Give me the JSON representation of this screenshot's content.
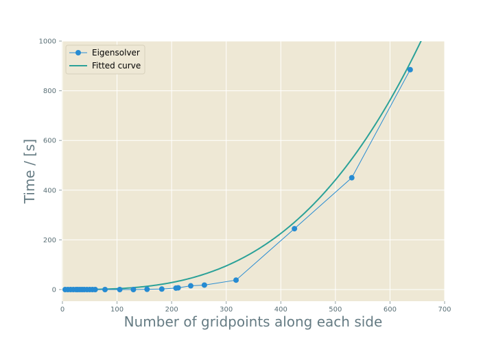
{
  "chart_data": {
    "type": "line",
    "title": "",
    "xlabel": "Number of gridpoints along each side",
    "ylabel": "Time / [s]",
    "xlim": [
      0,
      700
    ],
    "ylim": [
      -50,
      1000
    ],
    "xticks": [
      0,
      100,
      200,
      300,
      400,
      500,
      600,
      700
    ],
    "yticks": [
      0,
      200,
      400,
      600,
      800,
      1000
    ],
    "grid": true,
    "legend_position": "top-left",
    "series": [
      {
        "name": "Eigensolver",
        "style": "line-with-markers",
        "color": "#268bd2",
        "x": [
          5,
          10,
          15,
          20,
          25,
          28,
          32,
          36,
          40,
          45,
          50,
          55,
          60,
          78,
          105,
          130,
          155,
          182,
          208,
          212,
          235,
          260,
          318,
          425,
          530,
          637
        ],
        "y": [
          0,
          0,
          0,
          0,
          0,
          0,
          0,
          0,
          0,
          0,
          0,
          0,
          0,
          0,
          0,
          0,
          1,
          2,
          6,
          7,
          15,
          18,
          38,
          245,
          450,
          885
        ]
      },
      {
        "name": "Fitted curve",
        "style": "line",
        "color": "#2aa198",
        "function": "power",
        "coefficient": 3.53e-06,
        "exponent": 3,
        "x": [
          0,
          50,
          100,
          150,
          200,
          250,
          300,
          350,
          400,
          450,
          500,
          550,
          600,
          650,
          661
        ],
        "y": [
          0,
          0.4,
          3.5,
          11.9,
          28.2,
          55.2,
          95.3,
          151.4,
          225.9,
          321.7,
          441.3,
          587.3,
          762.5,
          969.4,
          1019.4
        ]
      }
    ]
  },
  "colors": {
    "plot_background": "#eee8d5",
    "grid": "#ffffff",
    "tick_text": "#586e75",
    "axis_label": "#657b83",
    "series_1": "#268bd2",
    "series_2": "#2aa198"
  }
}
